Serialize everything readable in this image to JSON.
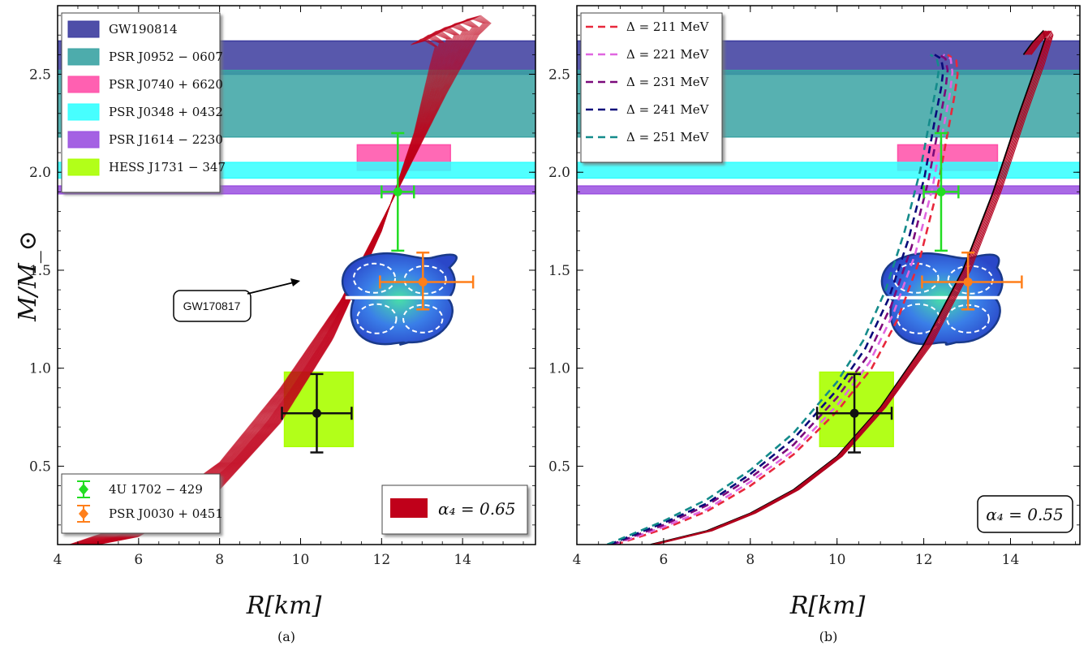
{
  "chart_data": [
    {
      "type": "line",
      "panel_caption": "(a)",
      "xlabel": "R[km]",
      "ylabel": "M/M_⊙",
      "xlim": [
        4,
        15.8
      ],
      "ylim": [
        0.1,
        2.85
      ],
      "xticks": [
        4,
        6,
        8,
        10,
        12,
        14
      ],
      "yticks": [
        0.5,
        1.0,
        1.5,
        2.0,
        2.5
      ],
      "xtick_labels": [
        "4",
        "6",
        "8",
        "10",
        "12",
        "14"
      ],
      "ytick_labels": [
        "0.5",
        "1.0",
        "1.5",
        "2.0",
        "2.5"
      ],
      "constraint_bands": [
        {
          "name": "GW190814",
          "ymin": 2.5,
          "ymax": 2.67,
          "color": "#3b3b9e"
        },
        {
          "name": "PSR J0952 − 0607",
          "ymin": 2.18,
          "ymax": 2.52,
          "color": "#3aa3a3"
        },
        {
          "name": "PSR J0740 + 6620",
          "xmin": 11.4,
          "xmax": 13.7,
          "ymin": 2.01,
          "ymax": 2.14,
          "color": "#ff4fa8"
        },
        {
          "name": "PSR J0348 + 0432",
          "ymin": 1.97,
          "ymax": 2.05,
          "color": "#33ffff"
        },
        {
          "name": "PSR J1614 − 2230",
          "ymin": 1.89,
          "ymax": 1.93,
          "color": "#9a50e0"
        },
        {
          "name": "HESS J1731 − 347",
          "xmin": 9.6,
          "xmax": 11.3,
          "ymin": 0.6,
          "ymax": 0.98,
          "color": "#aaff00"
        }
      ],
      "error_points": [
        {
          "name": "4U 1702 − 429",
          "x": 12.4,
          "y": 1.9,
          "xerr": 0.4,
          "yerr": 0.3,
          "color": "#22dd22"
        },
        {
          "name": "PSR J0030 + 0451",
          "x": 13.02,
          "y": 1.44,
          "xerr_lo": 1.06,
          "xerr_hi": 1.24,
          "yerr_lo": 0.14,
          "yerr_hi": 0.15,
          "color": "#ff7f1a"
        },
        {
          "name": "",
          "x": 10.4,
          "y": 0.77,
          "xerr": 0.86,
          "yerr": 0.2,
          "color": "#111111"
        }
      ],
      "annotation": "GW170817",
      "fill_legend": "α₄ = 0.65",
      "mr_band": {
        "color": "#c0001a",
        "lower_curve": [
          [
            4.0,
            0.06
          ],
          [
            6.0,
            0.14
          ],
          [
            8.0,
            0.38
          ],
          [
            9.5,
            0.72
          ],
          [
            10.8,
            1.15
          ],
          [
            12.0,
            1.7
          ],
          [
            12.8,
            2.2
          ],
          [
            13.2,
            2.55
          ],
          [
            13.4,
            2.7
          ],
          [
            13.45,
            2.8
          ]
        ],
        "upper_curve": [
          [
            4.0,
            0.08
          ],
          [
            6.0,
            0.22
          ],
          [
            8.0,
            0.52
          ],
          [
            9.5,
            0.9
          ],
          [
            11.0,
            1.35
          ],
          [
            12.5,
            1.95
          ],
          [
            13.6,
            2.4
          ],
          [
            14.4,
            2.7
          ],
          [
            14.9,
            2.8
          ]
        ]
      }
    },
    {
      "type": "line",
      "panel_caption": "(b)",
      "xlabel": "R[km]",
      "xlim": [
        4,
        15.6
      ],
      "ylim": [
        0.1,
        2.85
      ],
      "xticks": [
        4,
        6,
        8,
        10,
        12,
        14
      ],
      "yticks": [
        0.5,
        1.0,
        1.5,
        2.0,
        2.5
      ],
      "xtick_labels": [
        "4",
        "6",
        "8",
        "10",
        "12",
        "14"
      ],
      "ytick_labels": [
        "0.5",
        "1.0",
        "1.5",
        "2.0",
        "2.5"
      ],
      "fill_legend": "α₄ = 0.55",
      "series": [
        {
          "name": "Δ = 211 MeV",
          "color": "#e8283c",
          "dash": true,
          "x": [
            4.9,
            6.0,
            7.0,
            8.0,
            9.0,
            10.0,
            10.8,
            11.4,
            11.9,
            12.3,
            12.55,
            12.7,
            12.78,
            12.75,
            12.55
          ],
          "y": [
            0.1,
            0.18,
            0.27,
            0.4,
            0.56,
            0.78,
            1.0,
            1.25,
            1.55,
            1.9,
            2.2,
            2.38,
            2.5,
            2.57,
            2.6
          ]
        },
        {
          "name": "Δ = 221 MeV",
          "color": "#e066e0",
          "dash": true,
          "x": [
            4.85,
            6.0,
            7.0,
            8.0,
            9.0,
            10.0,
            10.75,
            11.3,
            11.8,
            12.2,
            12.45,
            12.6,
            12.66,
            12.62,
            12.45
          ],
          "y": [
            0.1,
            0.19,
            0.28,
            0.42,
            0.58,
            0.81,
            1.03,
            1.28,
            1.58,
            1.92,
            2.22,
            2.4,
            2.51,
            2.58,
            2.6
          ]
        },
        {
          "name": "Δ = 231 MeV",
          "color": "#7b0a7b",
          "dash": true,
          "x": [
            4.8,
            6.0,
            7.0,
            8.0,
            9.0,
            10.0,
            10.7,
            11.25,
            11.72,
            12.1,
            12.35,
            12.5,
            12.55,
            12.5,
            12.35
          ],
          "y": [
            0.1,
            0.2,
            0.3,
            0.44,
            0.61,
            0.85,
            1.06,
            1.32,
            1.62,
            1.95,
            2.24,
            2.42,
            2.52,
            2.58,
            2.6
          ]
        },
        {
          "name": "Δ = 241 MeV",
          "color": "#0a0a7a",
          "dash": true,
          "x": [
            4.75,
            6.0,
            7.0,
            8.0,
            9.0,
            10.0,
            10.65,
            11.2,
            11.65,
            12.02,
            12.25,
            12.4,
            12.45,
            12.4,
            12.25
          ],
          "y": [
            0.1,
            0.21,
            0.31,
            0.46,
            0.64,
            0.89,
            1.1,
            1.36,
            1.66,
            1.98,
            2.26,
            2.43,
            2.52,
            2.58,
            2.6
          ]
        },
        {
          "name": "Δ = 251 MeV",
          "color": "#148b8b",
          "dash": true,
          "x": [
            4.7,
            6.0,
            7.0,
            8.0,
            9.0,
            10.0,
            10.6,
            11.12,
            11.56,
            11.92,
            12.15,
            12.3,
            12.35,
            12.3,
            12.15
          ],
          "y": [
            0.1,
            0.22,
            0.33,
            0.48,
            0.67,
            0.93,
            1.14,
            1.4,
            1.7,
            2.01,
            2.28,
            2.45,
            2.53,
            2.58,
            2.6
          ]
        }
      ]
    }
  ]
}
